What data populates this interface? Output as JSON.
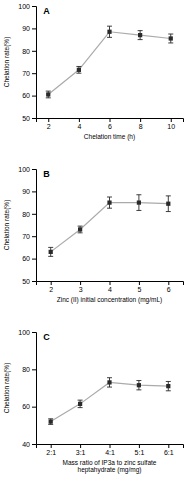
{
  "chart_data": [
    {
      "type": "line",
      "title": "A",
      "marker": "square",
      "color": "#2a2a2a",
      "x": [
        2,
        4,
        6,
        8,
        10
      ],
      "values": [
        60.5,
        71.5,
        88.5,
        87.0,
        85.5
      ],
      "yerr": [
        1.5,
        1.5,
        2.5,
        2.0,
        2.0
      ],
      "xlabel": "Chelation time (h)",
      "ylabel": "Chelation rate(%)",
      "xlim": [
        1.2,
        10.8
      ],
      "ylim": [
        50,
        100
      ],
      "yticks": [
        50,
        60,
        70,
        80,
        90,
        100
      ],
      "xticks": [
        2,
        4,
        6,
        8,
        10
      ]
    },
    {
      "type": "line",
      "title": "B",
      "marker": "square",
      "color": "#2a2a2a",
      "x": [
        2,
        3,
        4,
        5,
        6
      ],
      "values": [
        63.0,
        73.0,
        85.0,
        85.0,
        84.5
      ],
      "yerr": [
        2.0,
        1.5,
        2.5,
        3.5,
        3.5
      ],
      "xlabel": "Zinc (II) initial concentration (mg/mL)",
      "ylabel": "Chelation rate(%)",
      "xlim": [
        1.5,
        6.5
      ],
      "ylim": [
        50,
        100
      ],
      "yticks": [
        50,
        60,
        70,
        80,
        90,
        100
      ],
      "xticks": [
        2,
        3,
        4,
        5,
        6
      ]
    },
    {
      "type": "line",
      "title": "C",
      "marker": "square",
      "color": "#2a2a2a",
      "x": [
        1,
        2,
        3,
        4,
        5
      ],
      "values": [
        52.0,
        61.5,
        73.0,
        71.5,
        71.0
      ],
      "yerr": [
        1.5,
        2.0,
        2.5,
        2.5,
        2.5
      ],
      "xlabel": "Mass ratio of IP3a to zinc sulfate\nheptahydrate (mg/mg)",
      "ylabel": "Chelation rate(%)",
      "xlim": [
        0.5,
        5.5
      ],
      "ylim": [
        40,
        100
      ],
      "yticks": [
        40,
        60,
        80,
        100
      ],
      "xticks": [
        {
          "value": 1,
          "label": "2:1"
        },
        {
          "value": 2,
          "label": "3:1"
        },
        {
          "value": 3,
          "label": "4:1"
        },
        {
          "value": 4,
          "label": "5:1"
        },
        {
          "value": 5,
          "label": "6:1"
        }
      ]
    }
  ]
}
